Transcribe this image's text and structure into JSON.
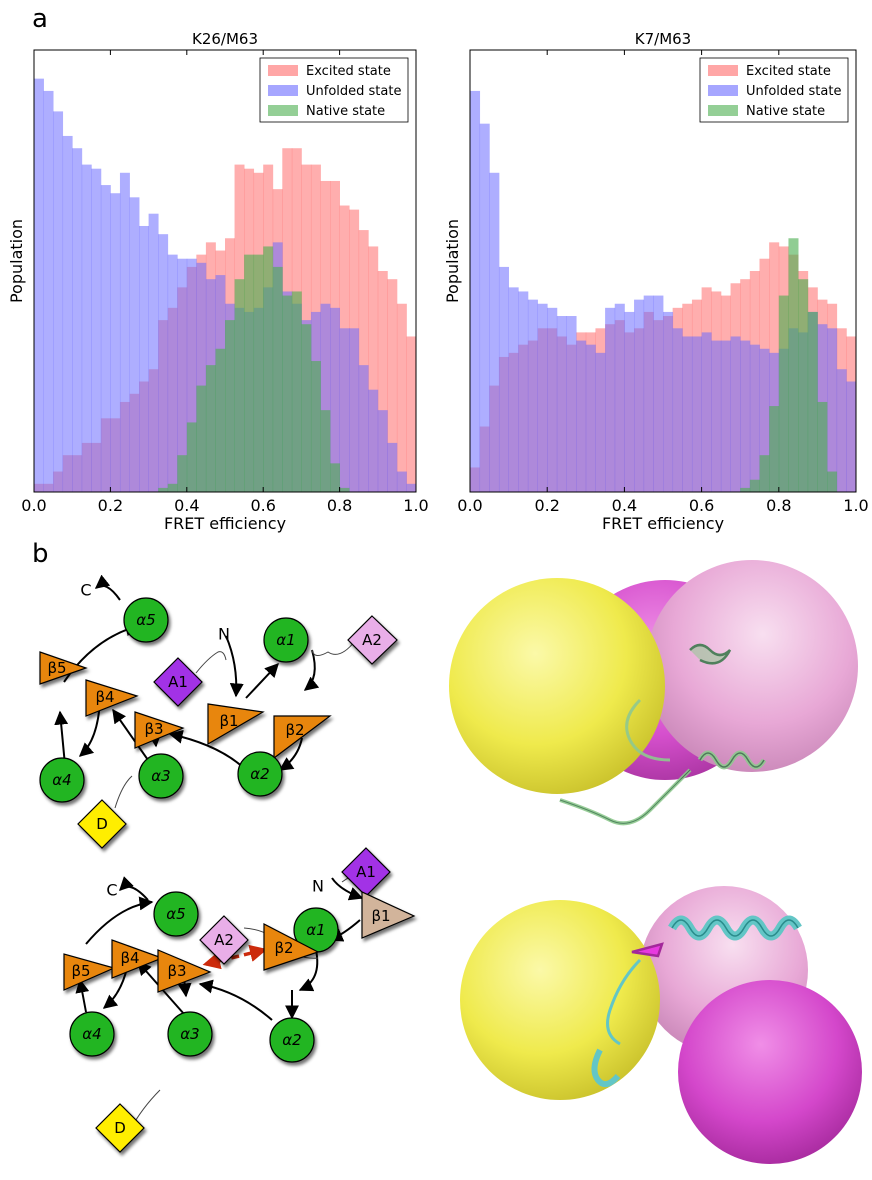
{
  "panel_a": {
    "label": "a"
  },
  "panel_b": {
    "label": "b"
  },
  "colors": {
    "excited": "#ff6b6b",
    "unfolded": "#6b6bff",
    "native": "#4caf50",
    "overlap": "#7b3bc8",
    "node_green": "#22b522",
    "node_orange": "#e8860c",
    "node_tan": "#d2b49b",
    "node_purple": "#a233e6",
    "node_pink": "#e9aee8",
    "node_yellow": "#ffee00",
    "red_arrow": "#cc2a0b",
    "blob_yellow": "#f2ee52",
    "blob_pink": "#e8a3d4",
    "blob_magenta": "#d44ccc",
    "helix_green": "#8fc98f",
    "helix_cyan": "#63c6c6"
  },
  "chart_data": [
    {
      "type": "bar",
      "title": "K26/M63",
      "xlabel": "FRET efficiency",
      "ylabel": "Population",
      "xlim": [
        0,
        1
      ],
      "xticks": [
        "0.0",
        "0.2",
        "0.4",
        "0.6",
        "0.8",
        "1.0"
      ],
      "bin_width": 0.025,
      "legend_position": "upper right",
      "series": [
        {
          "name": "Excited state",
          "values": [
            2,
            2,
            5,
            9,
            9,
            12,
            12,
            18,
            18,
            22,
            24,
            27,
            30,
            42,
            45,
            50,
            55,
            58,
            61,
            59,
            62,
            80,
            79,
            78,
            80,
            74,
            84,
            84,
            80,
            80,
            76,
            76,
            70,
            69,
            64,
            60,
            54,
            52,
            46,
            38
          ]
        },
        {
          "name": "Unfolded state",
          "values": [
            101,
            98,
            93,
            87,
            84,
            80,
            79,
            75,
            73,
            78,
            72,
            65,
            68,
            63,
            58,
            57,
            57,
            56,
            52,
            53,
            46,
            45,
            44,
            45,
            50,
            61,
            49,
            46,
            42,
            44,
            46,
            45,
            40,
            40,
            31,
            25,
            20,
            12,
            5,
            2
          ]
        },
        {
          "name": "Native state",
          "values": [
            0,
            0,
            0,
            0,
            0,
            0,
            0,
            0,
            0,
            0,
            0,
            0,
            0,
            1,
            2,
            9,
            17,
            26,
            31,
            35,
            42,
            52,
            58,
            58,
            60,
            55,
            48,
            49,
            41,
            32,
            20,
            7,
            1,
            0,
            0,
            0,
            0,
            0,
            0,
            0
          ]
        }
      ]
    },
    {
      "type": "bar",
      "title": "K7/M63",
      "xlabel": "FRET efficiency",
      "ylabel": "Population",
      "xlim": [
        0,
        1
      ],
      "xticks": [
        "0.0",
        "0.2",
        "0.4",
        "0.6",
        "0.8",
        "1.0"
      ],
      "bin_width": 0.025,
      "legend_position": "upper right",
      "series": [
        {
          "name": "Excited state",
          "values": [
            6,
            16,
            26,
            33,
            34,
            36,
            37,
            40,
            40,
            38,
            36,
            39,
            39,
            40,
            41,
            42,
            39,
            40,
            44,
            42,
            43,
            45,
            46,
            47,
            50,
            49,
            48,
            51,
            52,
            54,
            57,
            61,
            60,
            58,
            54,
            50,
            47,
            46,
            40,
            38
          ]
        },
        {
          "name": "Unfolded state",
          "values": [
            98,
            90,
            78,
            55,
            50,
            49,
            47,
            46,
            45,
            43,
            43,
            37,
            36,
            34,
            45,
            46,
            44,
            47,
            48,
            48,
            44,
            40,
            38,
            38,
            39,
            37,
            37,
            38,
            37,
            36,
            35,
            34,
            35,
            40,
            39,
            44,
            41,
            40,
            30,
            27
          ]
        },
        {
          "name": "Native state",
          "values": [
            0,
            0,
            0,
            0,
            0,
            0,
            0,
            0,
            0,
            0,
            0,
            0,
            0,
            0,
            0,
            0,
            0,
            0,
            0,
            0,
            0,
            0,
            0,
            0,
            0,
            0,
            0,
            0,
            1,
            3,
            9,
            21,
            48,
            62,
            52,
            44,
            22,
            5,
            0,
            0
          ]
        }
      ]
    }
  ],
  "diagrams": [
    {
      "nodes": [
        {
          "id": "a5",
          "label": "α5",
          "shape": "circle",
          "color": "green"
        },
        {
          "id": "b5",
          "label": "β5",
          "shape": "triangle",
          "color": "orange"
        },
        {
          "id": "a1",
          "label": "α1",
          "shape": "circle",
          "color": "green"
        },
        {
          "id": "A2",
          "label": "A2",
          "shape": "diamond",
          "color": "pink"
        },
        {
          "id": "A1",
          "label": "A1",
          "shape": "diamond",
          "color": "purple"
        },
        {
          "id": "b4",
          "label": "β4",
          "shape": "triangle",
          "color": "orange"
        },
        {
          "id": "b1",
          "label": "β1",
          "shape": "triangle",
          "color": "orange"
        },
        {
          "id": "b2",
          "label": "β2",
          "shape": "triangle",
          "color": "orange"
        },
        {
          "id": "b3",
          "label": "β3",
          "shape": "triangle",
          "color": "orange"
        },
        {
          "id": "a4",
          "label": "α4",
          "shape": "circle",
          "color": "green"
        },
        {
          "id": "a3",
          "label": "α3",
          "shape": "circle",
          "color": "green"
        },
        {
          "id": "a2",
          "label": "α2",
          "shape": "circle",
          "color": "green"
        },
        {
          "id": "D",
          "label": "D",
          "shape": "diamond",
          "color": "yellow"
        }
      ],
      "terminals": {
        "c": "C",
        "n": "N"
      }
    },
    {
      "nodes": [
        {
          "id": "A1",
          "label": "A1",
          "shape": "diamond",
          "color": "purple"
        },
        {
          "id": "b1",
          "label": "β1",
          "shape": "triangle",
          "color": "tan"
        },
        {
          "id": "a5",
          "label": "α5",
          "shape": "circle",
          "color": "green"
        },
        {
          "id": "a1",
          "label": "α1",
          "shape": "circle",
          "color": "green"
        },
        {
          "id": "b5",
          "label": "β5",
          "shape": "triangle",
          "color": "orange"
        },
        {
          "id": "A2",
          "label": "A2",
          "shape": "diamond",
          "color": "pink"
        },
        {
          "id": "b4",
          "label": "β4",
          "shape": "triangle",
          "color": "orange"
        },
        {
          "id": "b2",
          "label": "β2",
          "shape": "triangle",
          "color": "orange"
        },
        {
          "id": "b3",
          "label": "β3",
          "shape": "triangle",
          "color": "orange"
        },
        {
          "id": "a4",
          "label": "α4",
          "shape": "circle",
          "color": "green"
        },
        {
          "id": "a3",
          "label": "α3",
          "shape": "circle",
          "color": "green"
        },
        {
          "id": "a2",
          "label": "α2",
          "shape": "circle",
          "color": "green"
        },
        {
          "id": "D",
          "label": "D",
          "shape": "diamond",
          "color": "yellow"
        }
      ],
      "terminals": {
        "c": "C",
        "n": "N"
      }
    }
  ]
}
